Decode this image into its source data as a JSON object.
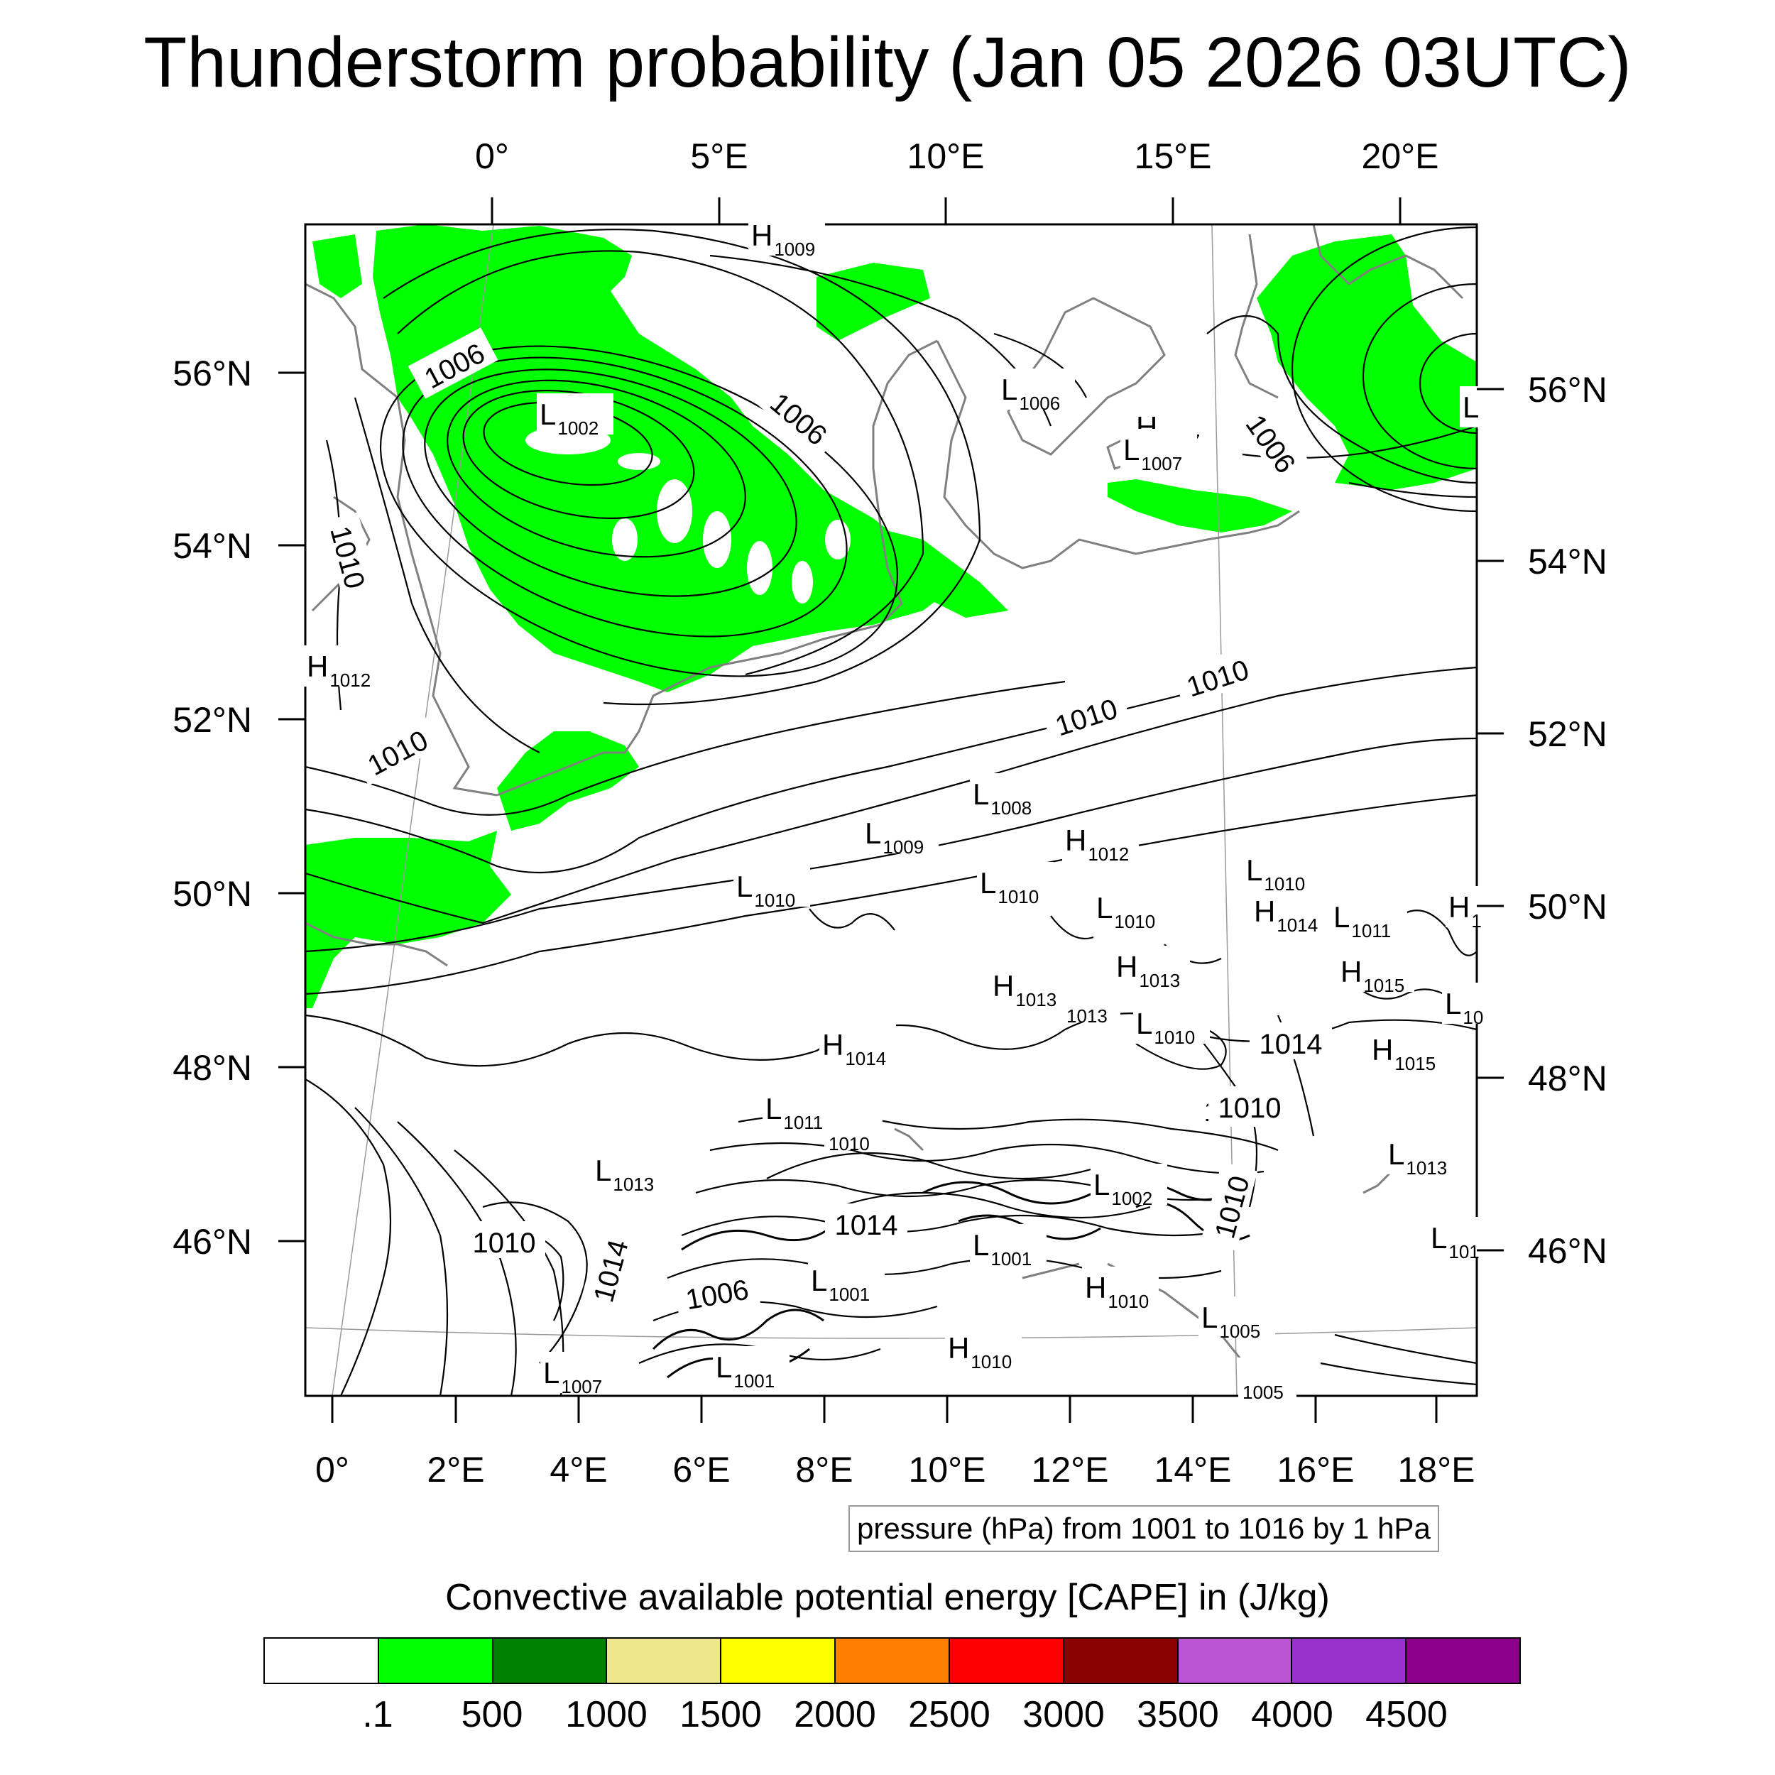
{
  "title": "Thunderstorm probability (Jan 05 2026 03UTC)",
  "top_lon_labels": [
    "0°",
    "5°E",
    "10°E",
    "15°E",
    "20°E"
  ],
  "bottom_lon_labels": [
    "0°",
    "2°E",
    "4°E",
    "6°E",
    "8°E",
    "10°E",
    "12°E",
    "14°E",
    "16°E",
    "18°E"
  ],
  "left_lat_labels": [
    "56°N",
    "54°N",
    "52°N",
    "50°N",
    "48°N",
    "46°N"
  ],
  "right_lat_labels": [
    "56°N",
    "54°N",
    "52°N",
    "50°N",
    "48°N",
    "46°N"
  ],
  "contour_labels": [
    "1006",
    "1006",
    "1006",
    "1010",
    "1010",
    "1010",
    "1010",
    "1010",
    "1014",
    "1010",
    "1014",
    "1014",
    "1006",
    "1010",
    "1010"
  ],
  "pressure_centers": [
    {
      "type": "H",
      "value": "1009"
    },
    {
      "type": "L",
      "value": "1002"
    },
    {
      "type": "L",
      "value": "1006"
    },
    {
      "type": "H",
      "value": "1007"
    },
    {
      "type": "L",
      "value": "1007"
    },
    {
      "type": "L",
      "value": ""
    },
    {
      "type": "H",
      "value": "1012"
    },
    {
      "type": "L",
      "value": "1008"
    },
    {
      "type": "L",
      "value": "1009"
    },
    {
      "type": "H",
      "value": "1012"
    },
    {
      "type": "L",
      "value": "1010"
    },
    {
      "type": "L",
      "value": "1010"
    },
    {
      "type": "L",
      "value": "1010"
    },
    {
      "type": "L",
      "value": "1010"
    },
    {
      "type": "H",
      "value": "1014"
    },
    {
      "type": "L",
      "value": "1011"
    },
    {
      "type": "H",
      "value": "1"
    },
    {
      "type": "H",
      "value": "1013"
    },
    {
      "type": "H",
      "value": "1015"
    },
    {
      "type": "H",
      "value": "1013"
    },
    {
      "type": "",
      "value": "1013"
    },
    {
      "type": "L",
      "value": "10"
    },
    {
      "type": "L",
      "value": "1010"
    },
    {
      "type": "H",
      "value": "1014"
    },
    {
      "type": "H",
      "value": "1015"
    },
    {
      "type": "L",
      "value": "1011"
    },
    {
      "type": "",
      "value": "1010"
    },
    {
      "type": "L",
      "value": "1013"
    },
    {
      "type": "L",
      "value": "1002"
    },
    {
      "type": "L",
      "value": "1013"
    },
    {
      "type": "L",
      "value": "1001"
    },
    {
      "type": "L",
      "value": "101"
    },
    {
      "type": "L",
      "value": "1001"
    },
    {
      "type": "H",
      "value": "1010"
    },
    {
      "type": "L",
      "value": "1005"
    },
    {
      "type": "L",
      "value": "1007"
    },
    {
      "type": "L",
      "value": "1001"
    },
    {
      "type": "H",
      "value": "1010"
    },
    {
      "type": "",
      "value": "1005"
    }
  ],
  "pressure_note": "pressure (hPa) from 1001 to 1016 by 1 hPa",
  "colorbar": {
    "title": "Convective available potential energy [CAPE] in (J/kg)",
    "colors": [
      "#ffffff",
      "#00ff00",
      "#007f00",
      "#f0e68c",
      "#ffff00",
      "#ff8000",
      "#ff0000",
      "#8b0000",
      "#ba55d3",
      "#9932cc",
      "#8b008b"
    ],
    "labels": [
      ".1",
      "500",
      "1000",
      "1500",
      "2000",
      "2500",
      "3000",
      "3500",
      "4000",
      "4500"
    ]
  },
  "style": {
    "cape_fill": "#00ff00",
    "coast": "#808080",
    "isobar": "#000000"
  }
}
